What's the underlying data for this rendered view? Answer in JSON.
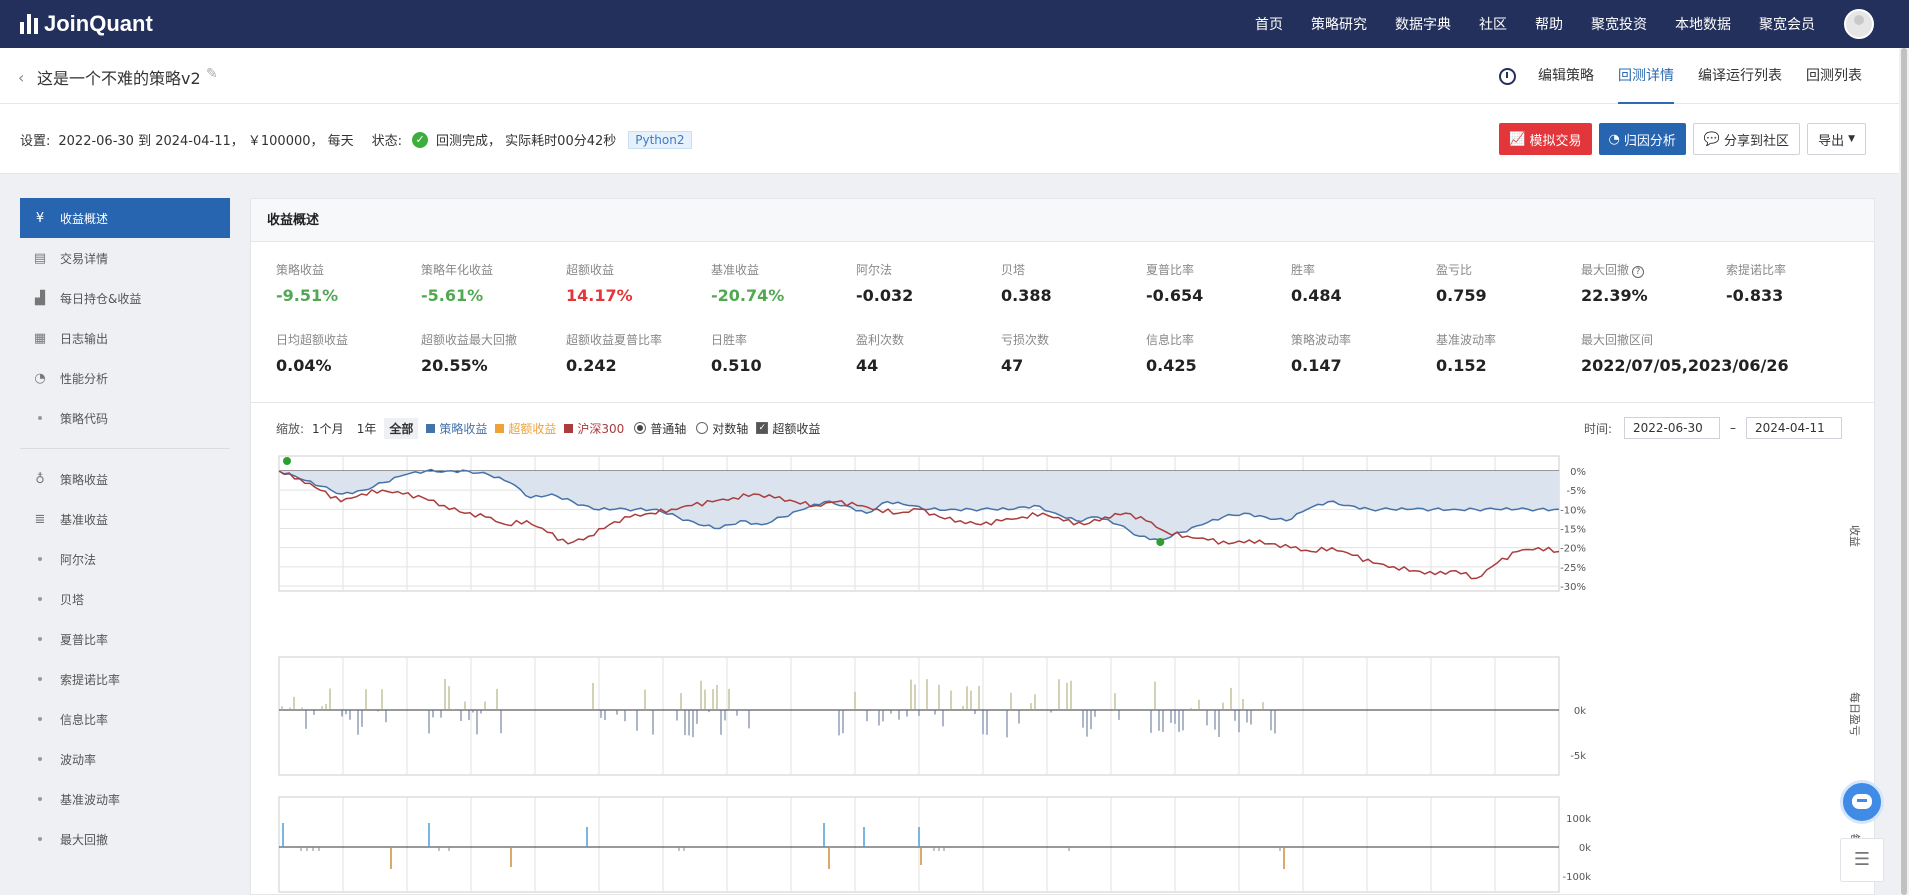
{
  "nav": {
    "logo_text": "JoinQuant",
    "items": [
      "首页",
      "策略研究",
      "数据字典",
      "社区",
      "帮助",
      "聚宽投资",
      "本地数据",
      "聚宽会员"
    ]
  },
  "titlebar": {
    "strategy_name": "这是一个不难的策略v2",
    "tabs": [
      {
        "label": "编辑策略",
        "active": false
      },
      {
        "label": "回测详情",
        "active": true
      },
      {
        "label": "编译运行列表",
        "active": false
      },
      {
        "label": "回测列表",
        "active": false
      }
    ]
  },
  "settings": {
    "label": "设置:",
    "range": "2022-06-30 到 2024-04-11， ￥100000， 每天",
    "status_label": "状态:",
    "status": "回测完成， 实际耗时00分42秒",
    "language": "Python2",
    "buttons": {
      "simulate": "模拟交易",
      "attribution": "归因分析",
      "share": "分享到社区",
      "export": "导出"
    }
  },
  "sidebar": {
    "items": [
      {
        "label": "收益概述",
        "icon": "yen-circle-icon",
        "active": true
      },
      {
        "label": "交易详情",
        "icon": "document-icon"
      },
      {
        "label": "每日持仓&收益",
        "icon": "chart-bars-icon"
      },
      {
        "label": "日志输出",
        "icon": "log-icon"
      },
      {
        "label": "性能分析",
        "icon": "pie-icon"
      },
      {
        "label": "策略代码",
        "icon": "dot"
      }
    ],
    "items2": [
      {
        "label": "策略收益",
        "icon": "bulb-icon"
      },
      {
        "label": "基准收益",
        "icon": "database-icon"
      },
      {
        "label": "阿尔法",
        "icon": "dot"
      },
      {
        "label": "贝塔",
        "icon": "dot"
      },
      {
        "label": "夏普比率",
        "icon": "dot"
      },
      {
        "label": "索提诺比率",
        "icon": "dot"
      },
      {
        "label": "信息比率",
        "icon": "dot"
      },
      {
        "label": "波动率",
        "icon": "dot"
      },
      {
        "label": "基准波动率",
        "icon": "dot"
      },
      {
        "label": "最大回撤",
        "icon": "dot"
      }
    ]
  },
  "panel": {
    "title": "收益概述",
    "metrics_row1": [
      {
        "label": "策略收益",
        "value": "-9.51%",
        "color": "green"
      },
      {
        "label": "策略年化收益",
        "value": "-5.61%",
        "color": "green"
      },
      {
        "label": "超额收益",
        "value": "14.17%",
        "color": "red"
      },
      {
        "label": "基准收益",
        "value": "-20.74%",
        "color": "green"
      },
      {
        "label": "阿尔法",
        "value": "-0.032"
      },
      {
        "label": "贝塔",
        "value": "0.388"
      },
      {
        "label": "夏普比率",
        "value": "-0.654"
      },
      {
        "label": "胜率",
        "value": "0.484"
      },
      {
        "label": "盈亏比",
        "value": "0.759"
      },
      {
        "label": "最大回撤",
        "value": "22.39%",
        "help": true
      },
      {
        "label": "索提诺比率",
        "value": "-0.833"
      }
    ],
    "metrics_row2": [
      {
        "label": "日均超额收益",
        "value": "0.04%"
      },
      {
        "label": "超额收益最大回撤",
        "value": "20.55%"
      },
      {
        "label": "超额收益夏普比率",
        "value": "0.242"
      },
      {
        "label": "日胜率",
        "value": "0.510"
      },
      {
        "label": "盈利次数",
        "value": "44"
      },
      {
        "label": "亏损次数",
        "value": "47"
      },
      {
        "label": "信息比率",
        "value": "0.425"
      },
      {
        "label": "策略波动率",
        "value": "0.147"
      },
      {
        "label": "基准波动率",
        "value": "0.152"
      },
      {
        "label": "最大回撤区间",
        "value": "2022/07/05,2023/06/26"
      }
    ]
  },
  "toolbar": {
    "zoom_label": "缩放:",
    "zoom_options": [
      "1个月",
      "1年",
      "全部"
    ],
    "legend": [
      {
        "label": "策略收益",
        "color": "#4572a7"
      },
      {
        "label": "超额收益",
        "color": "#f0a23a"
      },
      {
        "label": "沪深300",
        "color": "#aa3c3c"
      }
    ],
    "axis_normal": "普通轴",
    "axis_log": "对数轴",
    "excess_checkbox": "超额收益",
    "time_label": "时间:",
    "date_from": "2022-06-30",
    "date_to": "2024-04-11",
    "date_sep": "–"
  },
  "charts": {
    "returns_axis_title": "收益",
    "pnl_axis_title": "每日盈亏",
    "third_axis_title": "每"
  },
  "chart_data": [
    {
      "type": "line",
      "ylabel": "收益",
      "y_ticks": [
        "0%",
        "-5%",
        "-10%",
        "-15%",
        "-20%",
        "-25%",
        "-30%"
      ],
      "ylim": [
        -30,
        0
      ],
      "series": [
        {
          "name": "策略收益",
          "color": "#4572a7",
          "values": [
            0,
            -2,
            -4,
            -6,
            -5,
            -3,
            -1,
            0,
            0,
            0,
            -1,
            -3,
            -7,
            -6,
            -8,
            -10,
            -10,
            -10,
            -10,
            -12,
            -14,
            -15,
            -13,
            -14,
            -12,
            -10,
            -8,
            -9,
            -11,
            -8,
            -9,
            -10,
            -10,
            -10,
            -10,
            -10,
            -9,
            -11,
            -13,
            -12,
            -14,
            -17,
            -18,
            -16,
            -14,
            -12,
            -11,
            -12,
            -13,
            -10,
            -8,
            -9,
            -10,
            -10,
            -10,
            -10,
            -10,
            -10,
            -10,
            -10,
            -10,
            -10
          ]
        },
        {
          "name": "沪深300",
          "color": "#aa3c3c",
          "values": [
            0,
            -2,
            -5,
            -8,
            -6,
            -5,
            -6,
            -7,
            -9,
            -11,
            -12,
            -14,
            -13,
            -16,
            -19,
            -17,
            -14,
            -12,
            -11,
            -10,
            -9,
            -8,
            -7,
            -6,
            -7,
            -8,
            -9,
            -8,
            -9,
            -10,
            -11,
            -10,
            -12,
            -13,
            -14,
            -13,
            -12,
            -11,
            -13,
            -14,
            -12,
            -11,
            -13,
            -16,
            -17,
            -18,
            -19,
            -18,
            -19,
            -20,
            -21,
            -20,
            -22,
            -24,
            -25,
            -26,
            -27,
            -26,
            -28,
            -24,
            -21,
            -20,
            -21
          ]
        }
      ]
    },
    {
      "type": "bar",
      "ylabel": "每日盈亏",
      "y_ticks": [
        "0k",
        "-5k"
      ],
      "ylim": [
        -5000,
        3000
      ]
    },
    {
      "type": "bar",
      "ylabel": "每",
      "y_ticks": [
        "100k",
        "0k",
        "-100k"
      ],
      "ylim": [
        -100000,
        100000
      ]
    }
  ]
}
